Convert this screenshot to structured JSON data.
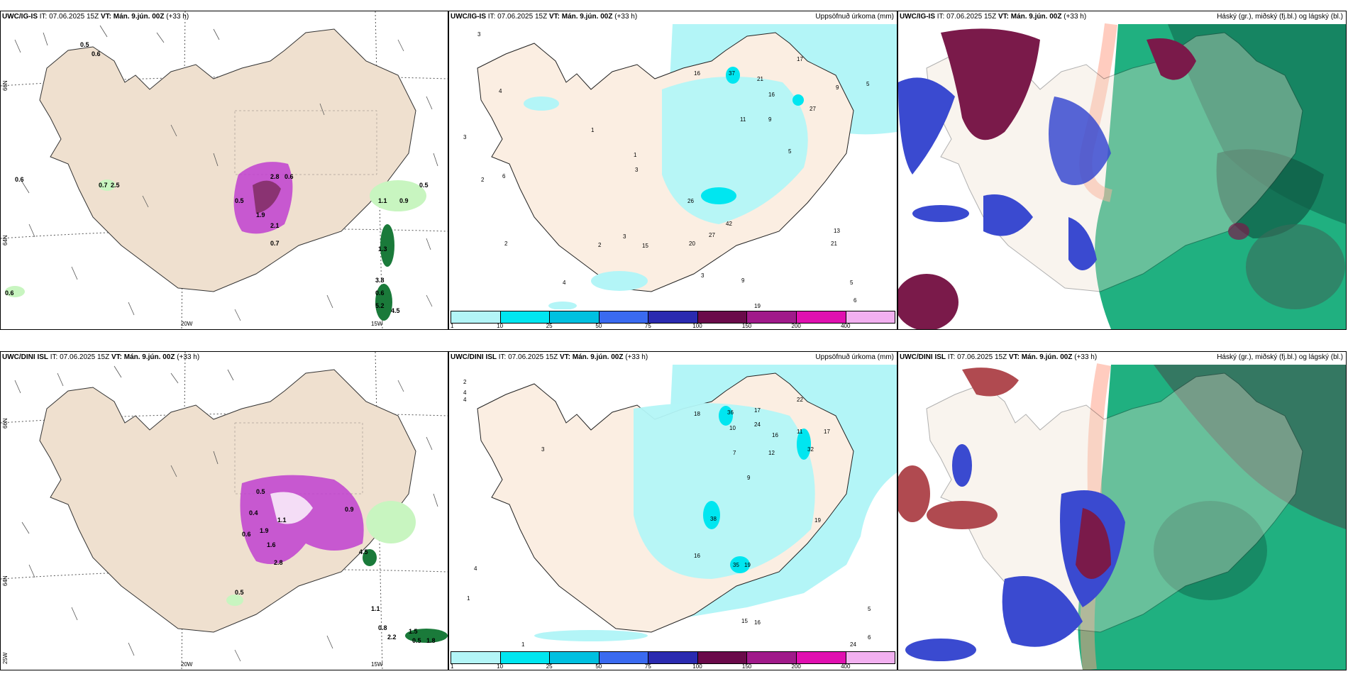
{
  "colors": {
    "land": "#efe0cf",
    "precip_light": "#b3f5f7",
    "precip_mid": "#00e6f0",
    "green_light": "#c8f5c0",
    "green_dark": "#1a7a3a",
    "magenta": "#c040d0",
    "purple_dark": "#7a2a5a",
    "cloud_high": "#7a1a4a",
    "cloud_mid": "#3a4ad0",
    "cloud_low": "#20b080"
  },
  "legend": {
    "colors": [
      "#b3f5f7",
      "#00e6f0",
      "#00c0e0",
      "#3a6af0",
      "#2a2ab0",
      "#6a0a4a",
      "#a01a8a",
      "#e010b0",
      "#f2b0f0"
    ],
    "ticks": [
      "1",
      "10",
      "25",
      "50",
      "75",
      "100",
      "150",
      "200",
      "400"
    ]
  },
  "panels": [
    {
      "model": "UWC/IG-IS",
      "it_label": "IT:",
      "it_value": "07.06.2025 15Z",
      "vt_label": "VT:",
      "vt_value": "Mán. 9.jún. 00Z",
      "lead": "(+33 h)",
      "right_title": "",
      "lon_labels": [
        "20W",
        "15W"
      ],
      "lat_labels": [
        "66N",
        "64N"
      ],
      "point_labels": [
        "0.5",
        "0.6",
        "0.6",
        "0.7",
        "2.5",
        "0.5",
        "0.5",
        "2.8",
        "0.6",
        "1.9",
        "2.1",
        "0.7",
        "1.1",
        "0.9",
        "1.3",
        "3.8",
        "0.6",
        "5.2",
        "4.5",
        "0.6"
      ]
    },
    {
      "model": "UWC/IG-IS",
      "it_label": "IT:",
      "it_value": "07.06.2025 15Z",
      "vt_label": "VT:",
      "vt_value": "Mán. 9.jún. 00Z",
      "lead": "(+33 h)",
      "right_title": "Uppsöfnuð úrkoma (mm)",
      "point_labels": [
        "3",
        "4",
        "3",
        "6",
        "2",
        "1",
        "2",
        "1",
        "3",
        "16",
        "37",
        "21",
        "17",
        "16",
        "9",
        "5",
        "27",
        "11",
        "9",
        "5",
        "26",
        "20",
        "27",
        "42",
        "13",
        "21",
        "15",
        "3",
        "2",
        "4",
        "3",
        "9",
        "19",
        "6",
        "5"
      ]
    },
    {
      "model": "UWC/IG-IS",
      "it_label": "IT:",
      "it_value": "07.06.2025 15Z",
      "vt_label": "VT:",
      "vt_value": "Mán. 9.jún. 00Z",
      "lead": "(+33 h)",
      "right_title": "Háský (gr.), miðský (fj.bl.) og lágský (bl.)"
    },
    {
      "model": "UWC/DINI ISL",
      "it_label": "IT:",
      "it_value": "07.06.2025 15Z",
      "vt_label": "VT:",
      "vt_value": "Mán. 9.jún. 00Z",
      "lead": "(+33 h)",
      "right_title": "",
      "lon_labels": [
        "20W",
        "15W"
      ],
      "lat_labels": [
        "66N",
        "64N",
        "25W"
      ],
      "point_labels": [
        "0.5",
        "0.4",
        "0.6",
        "1.1",
        "1.9",
        "1.6",
        "2.8",
        "0.9",
        "4.5",
        "1.1",
        "0.8",
        "2.2",
        "1.5",
        "0.5",
        "1.8",
        "0.5"
      ]
    },
    {
      "model": "UWC/DINI ISL",
      "it_label": "IT:",
      "it_value": "07.06.2025 15Z",
      "vt_label": "VT:",
      "vt_value": "Mán. 9.jún. 00Z",
      "lead": "(+33 h)",
      "right_title": "Uppsöfnuð úrkoma (mm)",
      "point_labels": [
        "2",
        "4",
        "4",
        "3",
        "18",
        "36",
        "17",
        "24",
        "22",
        "16",
        "11",
        "17",
        "32",
        "12",
        "7",
        "10",
        "9",
        "38",
        "35",
        "19",
        "16",
        "19",
        "15",
        "16",
        "24",
        "6",
        "5",
        "4",
        "1",
        "1"
      ]
    },
    {
      "model": "UWC/DINI ISL",
      "it_label": "IT:",
      "it_value": "07.06.2025 15Z",
      "vt_label": "VT:",
      "vt_value": "Mán. 9.jún. 00Z",
      "lead": "(+33 h)",
      "right_title": "Háský (gr.), miðský (fj.bl.) og lágský (bl.)"
    }
  ]
}
